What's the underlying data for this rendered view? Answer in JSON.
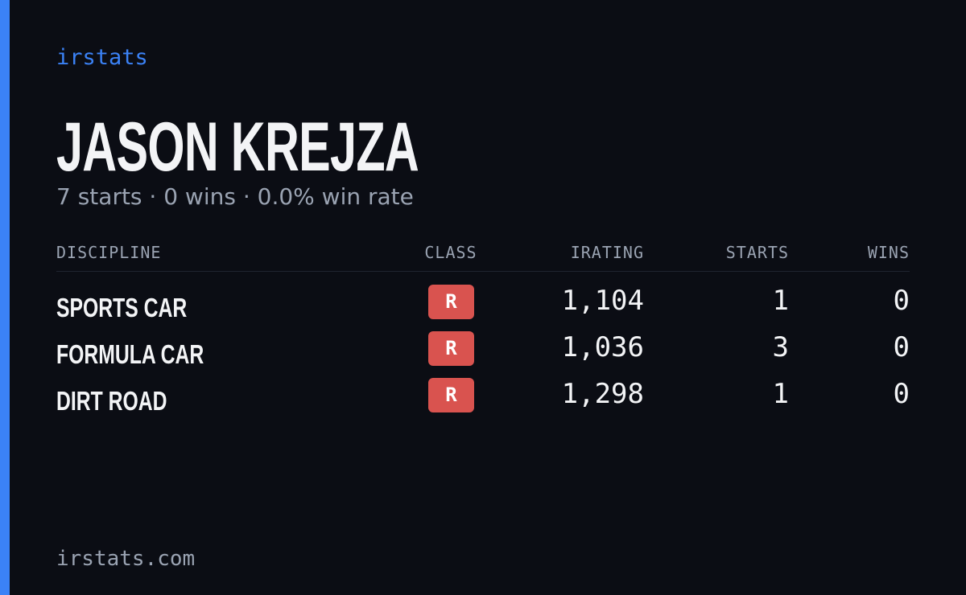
{
  "brand": "irstats",
  "name": "JASON KREJZA",
  "subtitle": "7 starts · 0 wins · 0.0% win rate",
  "table": {
    "headers": [
      "DISCIPLINE",
      "CLASS",
      "IRATING",
      "STARTS",
      "WINS"
    ],
    "rows": [
      [
        "SPORTS CAR",
        "R",
        "1,104",
        "1",
        "0"
      ],
      [
        "FORMULA CAR",
        "R",
        "1,036",
        "3",
        "0"
      ],
      [
        "DIRT ROAD",
        "R",
        "1,298",
        "1",
        "0"
      ]
    ]
  },
  "footer": "irstats.com"
}
